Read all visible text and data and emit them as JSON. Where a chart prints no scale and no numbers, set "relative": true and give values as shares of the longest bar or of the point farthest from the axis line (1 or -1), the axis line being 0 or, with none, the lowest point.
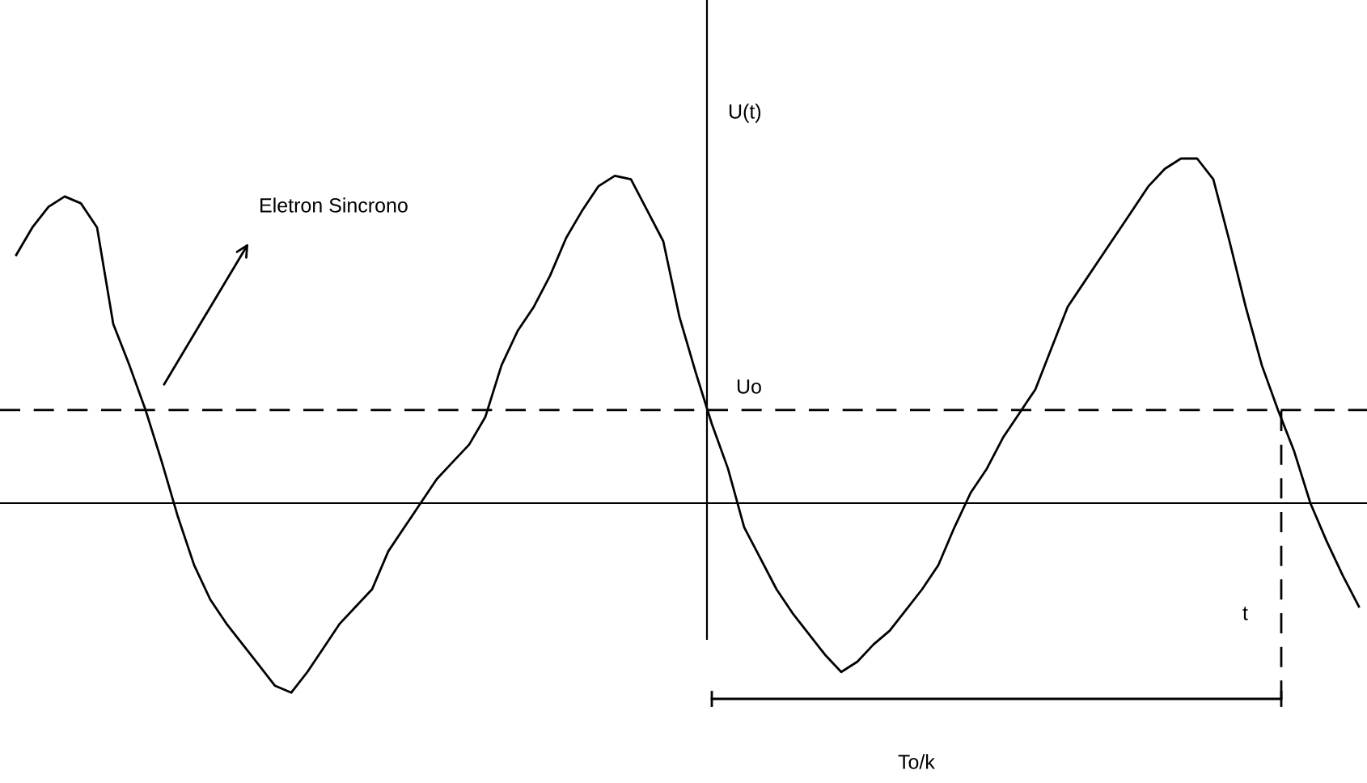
{
  "chart_data": {
    "type": "line",
    "relative": true,
    "categories": [
      null,
      null,
      null,
      null,
      null,
      null,
      null,
      null,
      null,
      null,
      null,
      null,
      null,
      null,
      null,
      null,
      null,
      null,
      null,
      null,
      null,
      null,
      null,
      null,
      null,
      null,
      null,
      null,
      null,
      null,
      null,
      null,
      null,
      null,
      null,
      null,
      null,
      null,
      null,
      null,
      null,
      null,
      null,
      null,
      null,
      null,
      null,
      null,
      null,
      null,
      null,
      null,
      null,
      null,
      null,
      null,
      null,
      null,
      null,
      null,
      null,
      null,
      null,
      null,
      null,
      null,
      null,
      null,
      null,
      null,
      null,
      null,
      null,
      null,
      null,
      null,
      null,
      null,
      null,
      null,
      null,
      null,
      null,
      null
    ],
    "series": [
      {
        "color": "#000000",
        "values": [
          0.72,
          0.8,
          0.86,
          0.89,
          0.87,
          0.8,
          0.52,
          0.4,
          0.27,
          0.12,
          -0.04,
          -0.18,
          -0.28,
          -0.35,
          -0.41,
          -0.47,
          -0.53,
          -0.55,
          -0.49,
          -0.42,
          -0.35,
          -0.3,
          -0.25,
          -0.14,
          -0.07,
          0.0,
          0.07,
          0.12,
          0.17,
          0.25,
          0.4,
          0.5,
          0.57,
          0.66,
          0.77,
          0.85,
          0.92,
          0.95,
          0.94,
          0.85,
          0.76,
          0.54,
          0.38,
          0.23,
          0.1,
          -0.07,
          -0.16,
          -0.25,
          -0.32,
          -0.38,
          -0.44,
          -0.49,
          -0.46,
          -0.41,
          -0.37,
          -0.31,
          -0.25,
          -0.18,
          -0.07,
          0.03,
          0.1,
          0.19,
          0.26,
          0.33,
          0.45,
          0.57,
          0.64,
          0.71,
          0.78,
          0.85,
          0.92,
          0.97,
          1,
          1,
          0.94,
          0.76,
          0.57,
          0.4,
          0.27,
          0.15,
          0.0,
          -0.11,
          -0.21,
          -0.3
        ]
      }
    ],
    "ref_lines": [
      {
        "axis": "y",
        "value": 0.27,
        "color": "#000000",
        "line_style": "dashed"
      }
    ],
    "annotations": [
      "U(t)",
      "Uo",
      "Eletron Sincrono",
      "t",
      "To/k"
    ],
    "marker": "none",
    "line_style": "solid"
  }
}
